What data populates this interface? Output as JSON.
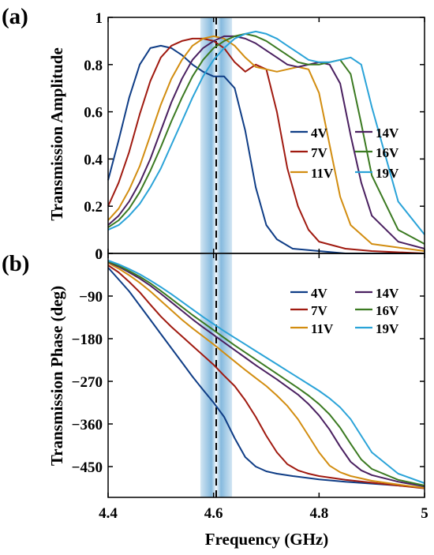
{
  "figure": {
    "xlabel": "Frequency (GHz)",
    "x_ticks": [
      "4.4",
      "4.6",
      "4.8",
      "5"
    ],
    "highlight_band_ghz": [
      4.575,
      4.635
    ],
    "marker_frequency_ghz": 4.605,
    "colors": {
      "4V": "#0f3d86",
      "7V": "#a01a10",
      "11V": "#d28d10",
      "14V": "#4a2060",
      "16V": "#3b7a21",
      "19V": "#2aa3d8",
      "band": "#7fb6dc"
    }
  },
  "chart_data": [
    {
      "panel_label": "(a)",
      "type": "line",
      "ylabel": "Transmission Amplitude",
      "xlim": [
        4.4,
        5.0
      ],
      "ylim": [
        0,
        1
      ],
      "y_ticks": [
        "0",
        "0.2",
        "0.4",
        "0.6",
        "0.8",
        "1"
      ],
      "legend_position": "right",
      "series": [
        {
          "name": "4V",
          "x": [
            4.4,
            4.42,
            4.44,
            4.46,
            4.48,
            4.5,
            4.52,
            4.54,
            4.56,
            4.58,
            4.6,
            4.62,
            4.64,
            4.66,
            4.68,
            4.7,
            4.72,
            4.75,
            4.8,
            4.85,
            4.9,
            5.0
          ],
          "y": [
            0.31,
            0.48,
            0.66,
            0.8,
            0.87,
            0.88,
            0.87,
            0.84,
            0.8,
            0.77,
            0.75,
            0.75,
            0.7,
            0.52,
            0.28,
            0.12,
            0.06,
            0.02,
            0.01,
            0.0,
            0.0,
            0.0
          ]
        },
        {
          "name": "7V",
          "x": [
            4.4,
            4.42,
            4.44,
            4.46,
            4.48,
            4.5,
            4.52,
            4.54,
            4.56,
            4.58,
            4.6,
            4.62,
            4.64,
            4.66,
            4.68,
            4.7,
            4.72,
            4.74,
            4.76,
            4.78,
            4.8,
            4.85,
            4.9,
            5.0
          ],
          "y": [
            0.2,
            0.3,
            0.43,
            0.59,
            0.73,
            0.83,
            0.88,
            0.9,
            0.91,
            0.91,
            0.9,
            0.87,
            0.81,
            0.77,
            0.8,
            0.78,
            0.6,
            0.36,
            0.2,
            0.1,
            0.05,
            0.02,
            0.01,
            0.0
          ]
        },
        {
          "name": "11V",
          "x": [
            4.4,
            4.42,
            4.44,
            4.46,
            4.48,
            4.5,
            4.52,
            4.54,
            4.56,
            4.58,
            4.6,
            4.62,
            4.64,
            4.66,
            4.68,
            4.7,
            4.72,
            4.74,
            4.76,
            4.78,
            4.8,
            4.82,
            4.84,
            4.86,
            4.9,
            5.0
          ],
          "y": [
            0.14,
            0.19,
            0.27,
            0.37,
            0.5,
            0.63,
            0.74,
            0.82,
            0.88,
            0.91,
            0.92,
            0.91,
            0.88,
            0.83,
            0.79,
            0.78,
            0.77,
            0.78,
            0.79,
            0.78,
            0.68,
            0.46,
            0.24,
            0.12,
            0.04,
            0.01
          ]
        },
        {
          "name": "14V",
          "x": [
            4.4,
            4.42,
            4.44,
            4.46,
            4.48,
            4.5,
            4.52,
            4.54,
            4.56,
            4.58,
            4.6,
            4.62,
            4.64,
            4.66,
            4.68,
            4.7,
            4.72,
            4.74,
            4.76,
            4.78,
            4.8,
            4.82,
            4.84,
            4.86,
            4.88,
            4.9,
            4.95,
            5.0
          ],
          "y": [
            0.12,
            0.16,
            0.22,
            0.3,
            0.4,
            0.52,
            0.64,
            0.74,
            0.82,
            0.87,
            0.9,
            0.92,
            0.92,
            0.91,
            0.89,
            0.86,
            0.83,
            0.8,
            0.79,
            0.8,
            0.81,
            0.8,
            0.72,
            0.5,
            0.3,
            0.16,
            0.05,
            0.02
          ]
        },
        {
          "name": "16V",
          "x": [
            4.4,
            4.42,
            4.44,
            4.46,
            4.48,
            4.5,
            4.52,
            4.54,
            4.56,
            4.58,
            4.6,
            4.62,
            4.64,
            4.66,
            4.68,
            4.7,
            4.72,
            4.74,
            4.76,
            4.78,
            4.8,
            4.82,
            4.84,
            4.86,
            4.88,
            4.9,
            4.95,
            5.0
          ],
          "y": [
            0.11,
            0.14,
            0.19,
            0.26,
            0.35,
            0.45,
            0.56,
            0.66,
            0.75,
            0.82,
            0.87,
            0.9,
            0.92,
            0.93,
            0.92,
            0.9,
            0.87,
            0.84,
            0.81,
            0.8,
            0.8,
            0.81,
            0.82,
            0.76,
            0.55,
            0.33,
            0.1,
            0.04
          ]
        },
        {
          "name": "19V",
          "x": [
            4.4,
            4.42,
            4.44,
            4.46,
            4.48,
            4.5,
            4.52,
            4.54,
            4.56,
            4.58,
            4.6,
            4.62,
            4.64,
            4.66,
            4.68,
            4.7,
            4.72,
            4.74,
            4.76,
            4.78,
            4.8,
            4.82,
            4.84,
            4.86,
            4.88,
            4.9,
            4.95,
            5.0
          ],
          "y": [
            0.1,
            0.12,
            0.16,
            0.21,
            0.28,
            0.36,
            0.46,
            0.56,
            0.66,
            0.75,
            0.82,
            0.87,
            0.91,
            0.93,
            0.94,
            0.93,
            0.91,
            0.88,
            0.85,
            0.82,
            0.81,
            0.81,
            0.82,
            0.83,
            0.8,
            0.62,
            0.22,
            0.08
          ]
        }
      ]
    },
    {
      "panel_label": "(b)",
      "type": "line",
      "ylabel": "Transmission Phase (deg)",
      "xlim": [
        4.4,
        5.0
      ],
      "ylim": [
        -515,
        0
      ],
      "y_ticks": [
        "0",
        "-90",
        "-180",
        "-270",
        "-360",
        "-450"
      ],
      "legend_position": "top-right",
      "series": [
        {
          "name": "4V",
          "x": [
            4.4,
            4.42,
            4.44,
            4.46,
            4.48,
            4.5,
            4.52,
            4.54,
            4.56,
            4.58,
            4.6,
            4.62,
            4.64,
            4.66,
            4.68,
            4.7,
            4.72,
            4.75,
            4.8,
            4.85,
            4.9,
            4.95,
            5.0
          ],
          "y": [
            -30,
            -55,
            -80,
            -110,
            -140,
            -170,
            -200,
            -230,
            -260,
            -288,
            -315,
            -345,
            -390,
            -430,
            -450,
            -460,
            -465,
            -470,
            -477,
            -482,
            -486,
            -490,
            -495
          ]
        },
        {
          "name": "7V",
          "x": [
            4.4,
            4.42,
            4.44,
            4.46,
            4.48,
            4.5,
            4.52,
            4.54,
            4.56,
            4.58,
            4.6,
            4.62,
            4.64,
            4.66,
            4.68,
            4.7,
            4.72,
            4.74,
            4.76,
            4.78,
            4.8,
            4.85,
            4.9,
            4.95,
            5.0
          ],
          "y": [
            -25,
            -40,
            -60,
            -82,
            -108,
            -133,
            -155,
            -175,
            -195,
            -215,
            -235,
            -258,
            -280,
            -310,
            -345,
            -385,
            -420,
            -445,
            -458,
            -465,
            -470,
            -478,
            -484,
            -490,
            -496
          ]
        },
        {
          "name": "11V",
          "x": [
            4.4,
            4.42,
            4.44,
            4.46,
            4.48,
            4.5,
            4.52,
            4.54,
            4.56,
            4.58,
            4.6,
            4.62,
            4.64,
            4.66,
            4.68,
            4.7,
            4.72,
            4.74,
            4.76,
            4.78,
            4.8,
            4.82,
            4.84,
            4.86,
            4.9,
            4.95,
            5.0
          ],
          "y": [
            -20,
            -32,
            -46,
            -62,
            -80,
            -100,
            -120,
            -140,
            -158,
            -175,
            -192,
            -210,
            -228,
            -246,
            -263,
            -280,
            -300,
            -322,
            -350,
            -385,
            -420,
            -448,
            -462,
            -470,
            -480,
            -488,
            -495
          ]
        },
        {
          "name": "14V",
          "x": [
            4.4,
            4.42,
            4.44,
            4.46,
            4.48,
            4.5,
            4.52,
            4.54,
            4.56,
            4.58,
            4.6,
            4.62,
            4.64,
            4.66,
            4.68,
            4.7,
            4.72,
            4.74,
            4.76,
            4.78,
            4.8,
            4.82,
            4.84,
            4.86,
            4.88,
            4.9,
            4.95,
            5.0
          ],
          "y": [
            -18,
            -28,
            -40,
            -53,
            -68,
            -85,
            -103,
            -121,
            -139,
            -156,
            -172,
            -188,
            -204,
            -220,
            -236,
            -251,
            -266,
            -282,
            -298,
            -318,
            -342,
            -372,
            -408,
            -440,
            -458,
            -468,
            -482,
            -492
          ]
        },
        {
          "name": "16V",
          "x": [
            4.4,
            4.42,
            4.44,
            4.46,
            4.48,
            4.5,
            4.52,
            4.54,
            4.56,
            4.58,
            4.6,
            4.62,
            4.64,
            4.66,
            4.68,
            4.7,
            4.72,
            4.74,
            4.76,
            4.78,
            4.8,
            4.82,
            4.84,
            4.86,
            4.88,
            4.9,
            4.95,
            5.0
          ],
          "y": [
            -17,
            -26,
            -37,
            -49,
            -63,
            -79,
            -96,
            -113,
            -130,
            -146,
            -162,
            -178,
            -194,
            -209,
            -224,
            -239,
            -254,
            -269,
            -284,
            -300,
            -318,
            -340,
            -368,
            -402,
            -435,
            -455,
            -478,
            -490
          ]
        },
        {
          "name": "19V",
          "x": [
            4.4,
            4.42,
            4.44,
            4.46,
            4.48,
            4.5,
            4.52,
            4.54,
            4.56,
            4.58,
            4.6,
            4.62,
            4.64,
            4.66,
            4.68,
            4.7,
            4.72,
            4.74,
            4.76,
            4.78,
            4.8,
            4.82,
            4.84,
            4.86,
            4.88,
            4.9,
            4.95,
            5.0
          ],
          "y": [
            -15,
            -23,
            -33,
            -44,
            -57,
            -71,
            -86,
            -102,
            -118,
            -134,
            -149,
            -164,
            -178,
            -192,
            -206,
            -220,
            -234,
            -248,
            -262,
            -276,
            -290,
            -306,
            -325,
            -350,
            -385,
            -420,
            -465,
            -485
          ]
        }
      ]
    }
  ]
}
